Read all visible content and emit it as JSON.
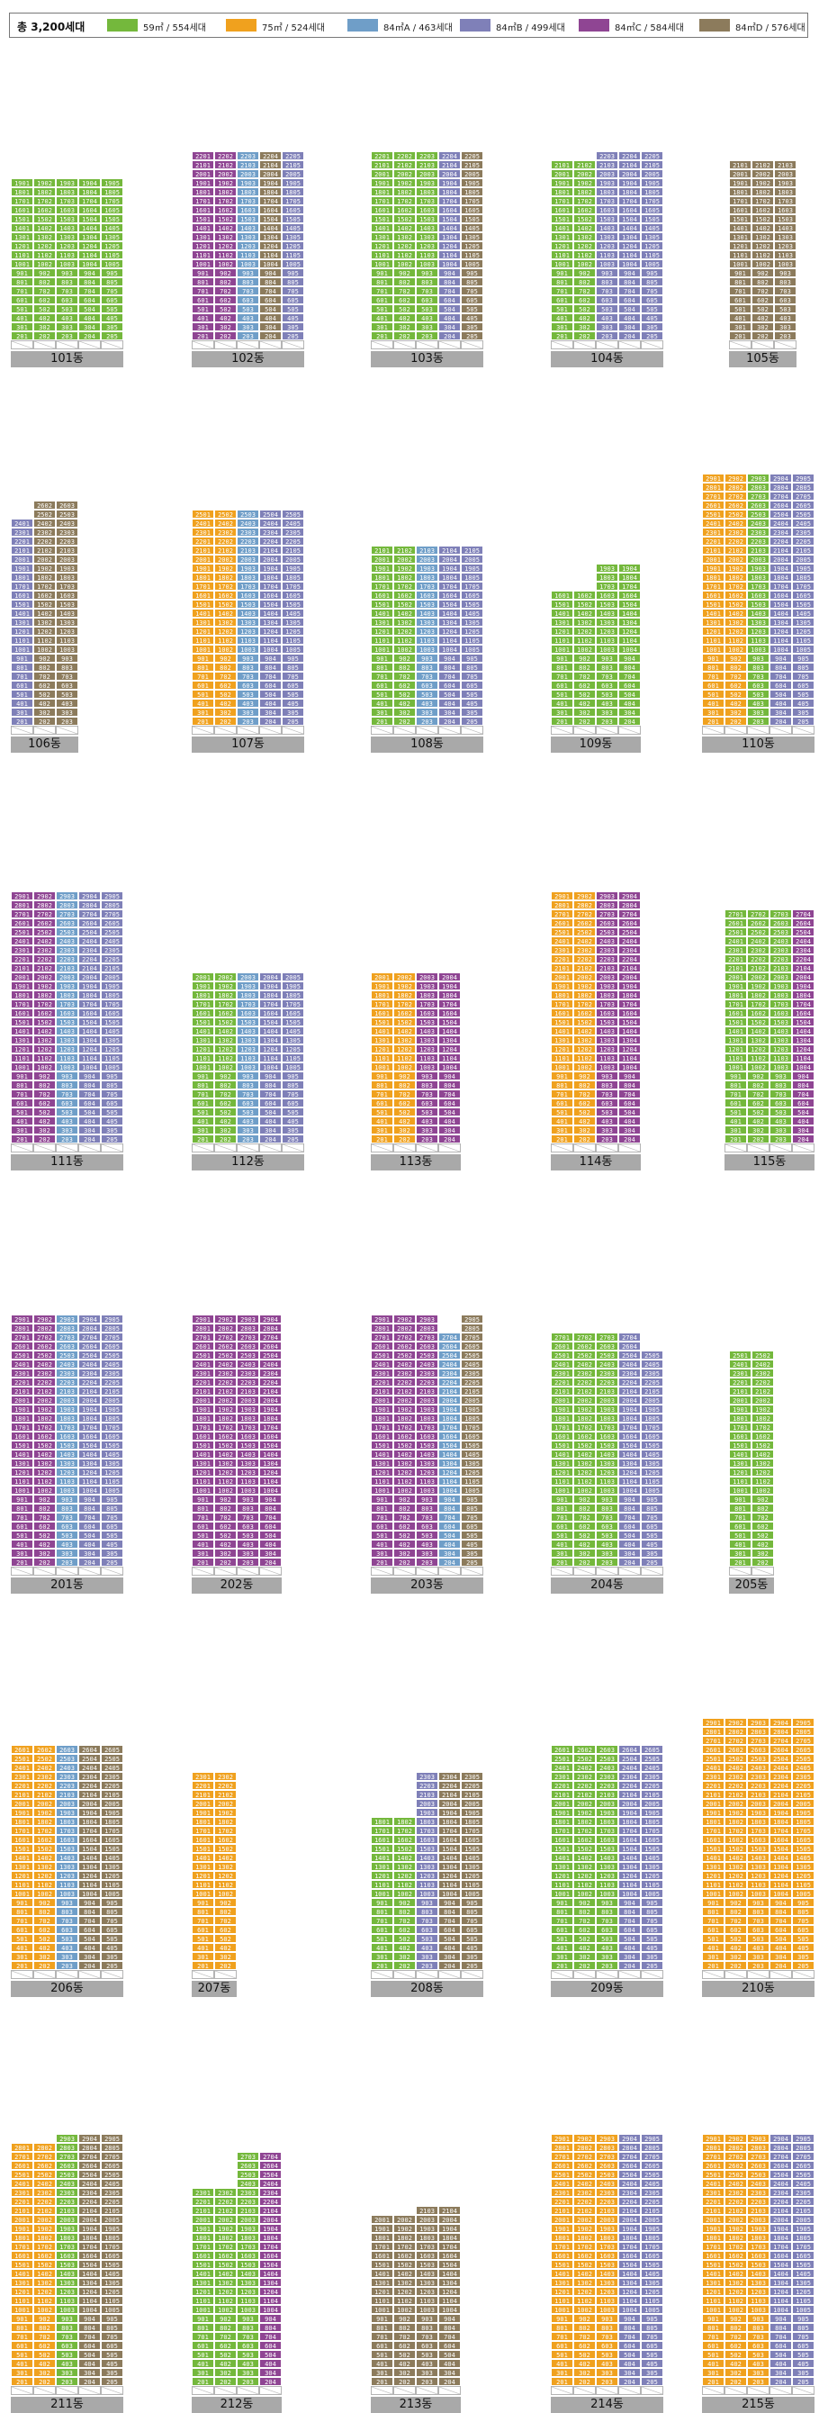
{
  "legend": {
    "total": "총 3,200세대",
    "types": [
      {
        "key": "A",
        "label": "59㎡ / 554세대",
        "color": "#74b83c"
      },
      {
        "key": "B",
        "label": "75㎡ / 524세대",
        "color": "#f0a11e"
      },
      {
        "key": "C",
        "label": "84㎡A / 463세대",
        "color": "#6f9ec8"
      },
      {
        "key": "D",
        "label": "84㎡B / 499세대",
        "color": "#7f80b8"
      },
      {
        "key": "E",
        "label": "84㎡C / 584세대",
        "color": "#8f4593"
      },
      {
        "key": "F",
        "label": "84㎡D / 576세대",
        "color": "#8c7b5c"
      }
    ]
  },
  "buildings": [
    {
      "name": "101동",
      "cols": [
        {
          "t": "A",
          "f": 19
        },
        {
          "t": "A",
          "f": 19
        },
        {
          "t": "A",
          "f": 19
        },
        {
          "t": "A",
          "f": 19
        },
        {
          "t": "A",
          "f": 19
        }
      ]
    },
    {
      "name": "102동",
      "cols": [
        {
          "t": "E",
          "f": 22
        },
        {
          "t": "E",
          "f": 22
        },
        {
          "t": "C",
          "f": 22
        },
        {
          "t": "F",
          "f": 22
        },
        {
          "t": "D",
          "f": 22
        }
      ]
    },
    {
      "name": "103동",
      "cols": [
        {
          "t": "A",
          "f": 22
        },
        {
          "t": "A",
          "f": 22
        },
        {
          "t": "A",
          "f": 22
        },
        {
          "t": "D",
          "f": 22
        },
        {
          "t": "F",
          "f": 22
        }
      ]
    },
    {
      "name": "104동",
      "cols": [
        {
          "t": "A",
          "f": 21
        },
        {
          "t": "A",
          "f": 21
        },
        {
          "t": "D",
          "f": 22
        },
        {
          "t": "D",
          "f": 22
        },
        {
          "t": "D",
          "f": 22
        }
      ]
    },
    {
      "name": "105동",
      "cols": [
        {
          "t": "F",
          "f": 21
        },
        {
          "t": "F",
          "f": 21
        },
        {
          "t": "F",
          "f": 21
        }
      ]
    },
    {
      "name": "106동",
      "cols": [
        {
          "t": "D",
          "f": 24
        },
        {
          "t": "F",
          "f": 26
        },
        {
          "t": "F",
          "f": 26
        }
      ]
    },
    {
      "name": "107동",
      "cols": [
        {
          "t": "B",
          "f": 25
        },
        {
          "t": "B",
          "f": 25
        },
        {
          "t": "C",
          "f": 25
        },
        {
          "t": "D",
          "f": 25
        },
        {
          "t": "D",
          "f": 25
        }
      ]
    },
    {
      "name": "108동",
      "cols": [
        {
          "t": "A",
          "f": 21
        },
        {
          "t": "A",
          "f": 21
        },
        {
          "t": "C",
          "f": 21
        },
        {
          "t": "D",
          "f": 21
        },
        {
          "t": "D",
          "f": 21
        }
      ]
    },
    {
      "name": "109동",
      "cols": [
        {
          "t": "A",
          "f": 16
        },
        {
          "t": "A",
          "f": 16
        },
        {
          "t": "A",
          "f": 19
        },
        {
          "t": "A",
          "f": 19
        }
      ]
    },
    {
      "name": "110동",
      "cols": [
        {
          "t": "B",
          "f": 29
        },
        {
          "t": "B",
          "f": 29
        },
        {
          "t": "A",
          "f": 29
        },
        {
          "t": "D",
          "f": 29
        },
        {
          "t": "D",
          "f": 29
        }
      ]
    },
    {
      "name": "111동",
      "cols": [
        {
          "t": "E",
          "f": 29
        },
        {
          "t": "E",
          "f": 29
        },
        {
          "t": "C",
          "f": 29
        },
        {
          "t": "D",
          "f": 29
        },
        {
          "t": "D",
          "f": 29
        }
      ]
    },
    {
      "name": "112동",
      "cols": [
        {
          "t": "A",
          "f": 20
        },
        {
          "t": "A",
          "f": 20
        },
        {
          "t": "C",
          "f": 20
        },
        {
          "t": "D",
          "f": 20
        },
        {
          "t": "D",
          "f": 20
        }
      ]
    },
    {
      "name": "113동",
      "cols": [
        {
          "t": "B",
          "f": 20
        },
        {
          "t": "B",
          "f": 20
        },
        {
          "t": "E",
          "f": 20
        },
        {
          "t": "E",
          "f": 20
        }
      ]
    },
    {
      "name": "114동",
      "cols": [
        {
          "t": "B",
          "f": 29
        },
        {
          "t": "B",
          "f": 29
        },
        {
          "t": "E",
          "f": 29
        },
        {
          "t": "E",
          "f": 29
        }
      ]
    },
    {
      "name": "115동",
      "cols": [
        {
          "t": "A",
          "f": 27
        },
        {
          "t": "A",
          "f": 27
        },
        {
          "t": "A",
          "f": 27
        },
        {
          "t": "E",
          "f": 27
        }
      ]
    },
    {
      "name": "201동",
      "cols": [
        {
          "t": "E",
          "f": 29
        },
        {
          "t": "E",
          "f": 29
        },
        {
          "t": "C",
          "f": 29
        },
        {
          "t": "D",
          "f": 29
        },
        {
          "t": "D",
          "f": 29
        }
      ]
    },
    {
      "name": "202동",
      "cols": [
        {
          "t": "E",
          "f": 29
        },
        {
          "t": "E",
          "f": 29
        },
        {
          "t": "E",
          "f": 29
        },
        {
          "t": "E",
          "f": 29
        }
      ]
    },
    {
      "name": "203동",
      "cols": [
        {
          "t": "E",
          "f": 29
        },
        {
          "t": "E",
          "f": 29
        },
        {
          "t": "E",
          "f": 29
        },
        {
          "t": "C",
          "f": 27
        },
        {
          "t": "F",
          "f": 29
        }
      ]
    },
    {
      "name": "204동",
      "cols": [
        {
          "t": "A",
          "f": 27
        },
        {
          "t": "A",
          "f": 27
        },
        {
          "t": "A",
          "f": 27
        },
        {
          "t": "D",
          "f": 27
        },
        {
          "t": "D",
          "f": 25
        }
      ]
    },
    {
      "name": "205동",
      "cols": [
        {
          "t": "A",
          "f": 25
        },
        {
          "t": "A",
          "f": 25
        }
      ]
    },
    {
      "name": "206동",
      "cols": [
        {
          "t": "B",
          "f": 26
        },
        {
          "t": "B",
          "f": 26
        },
        {
          "t": "C",
          "f": 26
        },
        {
          "t": "F",
          "f": 26
        },
        {
          "t": "F",
          "f": 26
        }
      ]
    },
    {
      "name": "207동",
      "cols": [
        {
          "t": "B",
          "f": 23
        },
        {
          "t": "B",
          "f": 23
        }
      ]
    },
    {
      "name": "208동",
      "cols": [
        {
          "t": "A",
          "f": 18
        },
        {
          "t": "A",
          "f": 18
        },
        {
          "t": "D",
          "f": 23
        },
        {
          "t": "F",
          "f": 23
        },
        {
          "t": "F",
          "f": 23
        }
      ]
    },
    {
      "name": "209동",
      "cols": [
        {
          "t": "A",
          "f": 26
        },
        {
          "t": "A",
          "f": 26
        },
        {
          "t": "A",
          "f": 26
        },
        {
          "t": "D",
          "f": 26
        },
        {
          "t": "D",
          "f": 26
        }
      ]
    },
    {
      "name": "210동",
      "cols": [
        {
          "t": "B",
          "f": 29
        },
        {
          "t": "B",
          "f": 29
        },
        {
          "t": "B",
          "f": 29
        },
        {
          "t": "B",
          "f": 29
        },
        {
          "t": "B",
          "f": 29
        }
      ]
    },
    {
      "name": "211동",
      "cols": [
        {
          "t": "B",
          "f": 28
        },
        {
          "t": "B",
          "f": 28
        },
        {
          "t": "A",
          "f": 29
        },
        {
          "t": "F",
          "f": 29
        },
        {
          "t": "F",
          "f": 29
        }
      ]
    },
    {
      "name": "212동",
      "cols": [
        {
          "t": "A",
          "f": 23
        },
        {
          "t": "A",
          "f": 23
        },
        {
          "t": "A",
          "f": 27
        },
        {
          "t": "E",
          "f": 27
        }
      ]
    },
    {
      "name": "213동",
      "cols": [
        {
          "t": "F",
          "f": 20
        },
        {
          "t": "F",
          "f": 20
        },
        {
          "t": "F",
          "f": 21
        },
        {
          "t": "F",
          "f": 21
        }
      ]
    },
    {
      "name": "214동",
      "cols": [
        {
          "t": "B",
          "f": 29
        },
        {
          "t": "B",
          "f": 29
        },
        {
          "t": "B",
          "f": 29
        },
        {
          "t": "D",
          "f": 29
        },
        {
          "t": "D",
          "f": 29
        }
      ]
    },
    {
      "name": "215동",
      "cols": [
        {
          "t": "B",
          "f": 29
        },
        {
          "t": "B",
          "f": 29
        },
        {
          "t": "B",
          "f": 29
        },
        {
          "t": "D",
          "f": 29
        },
        {
          "t": "D",
          "f": 29
        }
      ]
    }
  ]
}
